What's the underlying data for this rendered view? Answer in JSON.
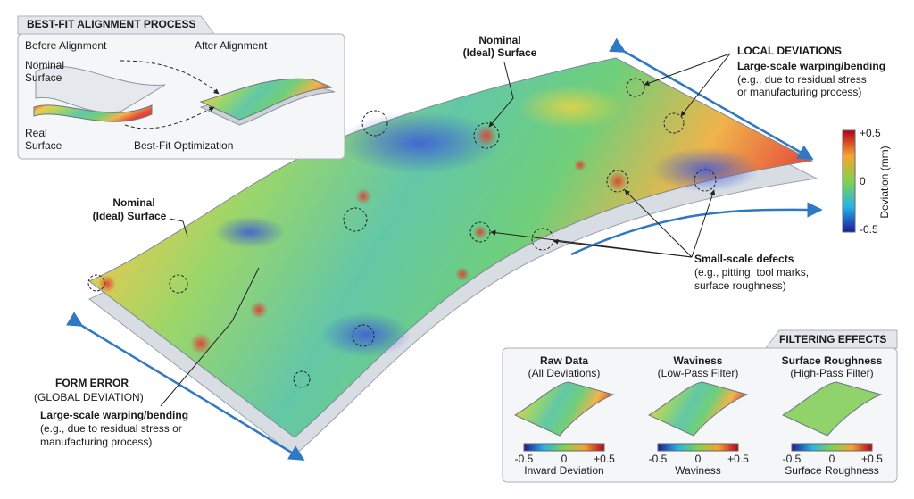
{
  "alignment_panel": {
    "title": "BEST-FIT ALIGNMENT PROCESS",
    "before": "Before Alignment",
    "after": "After Alignment",
    "nominal_label": [
      "Nominal",
      "Surface"
    ],
    "real_label": [
      "Real",
      "Surface"
    ],
    "optimization": "Best-Fit Optimization"
  },
  "callouts": {
    "nominal_top": [
      "Nominal",
      "(Ideal) Surface"
    ],
    "nominal_left": [
      "Nominal",
      "(Ideal) Surface"
    ],
    "local": {
      "title": "LOCAL DEVIATIONS",
      "subtitle": "Large-scale warping/bending",
      "note": [
        "(e.g., due to residual stress",
        "or manufacturing process)"
      ]
    },
    "small_defects": {
      "title": "Small-scale defects",
      "note": [
        "(e.g., pitting, tool marks,",
        "surface roughness)"
      ]
    },
    "form_error": {
      "title": "FORM ERROR",
      "subtitle": "(GLOBAL DEVIATION)",
      "description": "Large-scale warping/bending",
      "note": [
        "(e.g., due to residual stress or",
        "manufacturing process)"
      ]
    }
  },
  "colorbar": {
    "max": "+0.5",
    "mid": "0",
    "min": "-0.5",
    "label": "Deviation (mm)"
  },
  "filtering": {
    "title": "FILTERING EFFECTS",
    "panels": [
      {
        "title": "Raw Data",
        "subtitle": "(All Deviations)",
        "scale": [
          "-0.5",
          "0",
          "+0.5"
        ],
        "caption": "Inward Deviation"
      },
      {
        "title": "Waviness",
        "subtitle": "(Low-Pass Filter)",
        "scale": [
          "-0.5",
          "0",
          "+0.5"
        ],
        "caption": "Waviness"
      },
      {
        "title": "Surface Roughness",
        "subtitle": "(High-Pass Filter)",
        "scale": [
          "-0.5",
          "0",
          "+0.5"
        ],
        "caption": "Surface Roughness"
      }
    ]
  }
}
